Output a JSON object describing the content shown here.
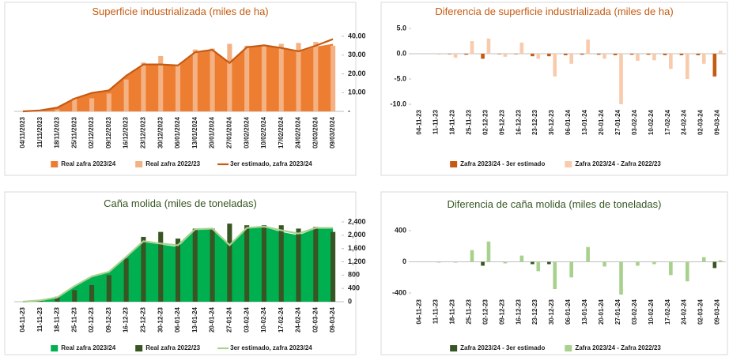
{
  "chart_data": [
    {
      "type": "combo",
      "title": "Superficie industrializada (miles de ha)",
      "title_color": "#C55A11",
      "y_axis_side": "right",
      "legend": "bottom",
      "categories": [
        "04/11/2023",
        "11/11/2023",
        "18/11/2023",
        "25/11/2023",
        "02/12/2023",
        "09/12/2023",
        "16/12/2023",
        "23/12/2023",
        "30/12/2023",
        "06/01/2024",
        "13/01/2024",
        "20/01/2024",
        "27/01/2024",
        "03/02/2024",
        "10/02/2024",
        "17/02/2024",
        "24/02/2024",
        "02/03/2024",
        "09/03/2024"
      ],
      "ylim": [
        0,
        40
      ],
      "yticks": [
        {
          "value": 0,
          "label": "-"
        },
        {
          "value": 10,
          "label": "10.00"
        },
        {
          "value": 20,
          "label": "20.00"
        },
        {
          "value": 30,
          "label": "30.00"
        },
        {
          "value": 40,
          "label": "40.00"
        }
      ],
      "series": [
        {
          "name": "Real zafra 2023/24",
          "kind": "area",
          "color": "#ED7D31",
          "values": [
            0,
            0.5,
            2,
            6.5,
            9.5,
            11,
            19,
            25,
            25,
            24,
            31,
            32.5,
            25.5,
            34,
            35,
            33.5,
            31.5,
            34.5,
            36
          ]
        },
        {
          "name": "Real zafra 2022/23",
          "kind": "bar",
          "color": "#F4B183",
          "values": [
            0,
            0.3,
            1,
            7,
            7,
            9.5,
            17,
            26,
            29.5,
            25,
            33,
            33.5,
            36,
            35,
            35.5,
            36,
            36.5,
            37,
            35
          ]
        },
        {
          "name": "3er estimado, zafra 2023/24",
          "kind": "line",
          "color": "#C55A11",
          "values": [
            0,
            0.5,
            2,
            6.8,
            9.8,
            11.2,
            19,
            25,
            25,
            24.5,
            31.5,
            32.8,
            25.8,
            34.2,
            35.2,
            33.8,
            32,
            35,
            38.5
          ]
        }
      ]
    },
    {
      "type": "bar",
      "title": "Diferencia de superficie industrializada (miles de ha)",
      "title_color": "#C55A11",
      "y_axis_side": "left",
      "legend": "bottom",
      "categories": [
        "04-11-23",
        "11-11-23",
        "18-11-23",
        "25-11-23",
        "02-12-23",
        "09-12-23",
        "16-12-23",
        "23-12-23",
        "30-12-23",
        "06-01-24",
        "13-01-24",
        "20-01-24",
        "27-01-24",
        "03-02-24",
        "10-02-24",
        "17-02-24",
        "24-02-24",
        "02-03-24",
        "09-03-24"
      ],
      "ylim": [
        -10,
        5
      ],
      "yticks": [
        {
          "value": 5,
          "label": "5.0"
        },
        {
          "value": 0,
          "label": "0.0"
        },
        {
          "value": -5,
          "label": "-5.0"
        },
        {
          "value": -10,
          "label": "-10.0"
        }
      ],
      "series": [
        {
          "name": "Zafra 2023/24 - 3er estimado",
          "kind": "bar",
          "color": "#C55A11",
          "values": [
            0,
            0,
            -0.1,
            -0.2,
            -1.0,
            -0.1,
            -0.1,
            -0.5,
            -0.5,
            -0.3,
            -0.2,
            -0.2,
            -0.3,
            -0.2,
            -0.2,
            -0.3,
            -0.3,
            -0.3,
            -4.5
          ]
        },
        {
          "name": "Zafra 2023/24 - Zafra 2022/23",
          "kind": "bar",
          "color": "#F8CBAD",
          "values": [
            0,
            -0.2,
            -0.8,
            2.5,
            3.0,
            -0.6,
            2.2,
            -1.0,
            -4.5,
            -2.0,
            2.8,
            -1.0,
            -10.0,
            -1.4,
            -1.3,
            -3.0,
            -5.0,
            -2.0,
            0.6
          ]
        }
      ]
    },
    {
      "type": "combo",
      "title": "Caña molida (miles de toneladas)",
      "title_color": "#375623",
      "y_axis_side": "right",
      "legend": "bottom",
      "categories": [
        "04-11-23",
        "11-11-23",
        "18-11-23",
        "25-11-23",
        "02-12-23",
        "09-12-23",
        "16-12-23",
        "23-12-23",
        "30-12-23",
        "06-01-24",
        "13-01-24",
        "20-01-24",
        "27-01-24",
        "03-02-24",
        "10-02-24",
        "17-02-24",
        "24-02-24",
        "02-03-24",
        "09-03-24"
      ],
      "ylim": [
        0,
        2400
      ],
      "yticks": [
        0,
        400,
        800,
        {
          "value": 1200,
          "label": "1,200"
        },
        {
          "value": 1600,
          "label": "1,600"
        },
        {
          "value": 2000,
          "label": "2,000"
        },
        {
          "value": 2400,
          "label": "2,400"
        }
      ],
      "series": [
        {
          "name": "Real zafra 2023/24",
          "kind": "area",
          "color": "#00B050",
          "values": [
            0,
            30,
            120,
            450,
            750,
            880,
            1350,
            1800,
            1720,
            1650,
            2150,
            2200,
            1680,
            2200,
            2250,
            2100,
            2000,
            2200,
            2200
          ]
        },
        {
          "name": "Real zafra 2022/23",
          "kind": "bar",
          "color": "#375623",
          "values": [
            0,
            50,
            150,
            350,
            500,
            800,
            1300,
            1950,
            2100,
            1900,
            2200,
            2200,
            2350,
            2300,
            2300,
            2300,
            2200,
            2250,
            2100
          ]
        },
        {
          "name": "3er estimado, zafra 2023/24",
          "kind": "line",
          "color": "#A9D18E",
          "values": [
            0,
            40,
            130,
            470,
            760,
            900,
            1350,
            1820,
            1750,
            1700,
            2180,
            2200,
            1700,
            2220,
            2260,
            2150,
            2050,
            2220,
            2220
          ]
        }
      ]
    },
    {
      "type": "bar",
      "title": "Diferencia de caña molida (miles de toneladas)",
      "title_color": "#375623",
      "y_axis_side": "left",
      "legend": "bottom",
      "categories": [
        "04-11-23",
        "11-11-23",
        "18-11-23",
        "25-11-23",
        "02-12-23",
        "09-12-23",
        "16-12-23",
        "23-12-23",
        "30-12-23",
        "06-01-24",
        "13-01-24",
        "20-01-24",
        "27-01-24",
        "03-02-24",
        "10-02-24",
        "17-02-24",
        "24-02-24",
        "02-03-24",
        "09-03-24"
      ],
      "ylim": [
        -400,
        400
      ],
      "yticks": [
        400,
        0,
        -400
      ],
      "series": [
        {
          "name": "Zafra 2023/24 - 3er estimado",
          "kind": "bar",
          "color": "#375623",
          "values": [
            0,
            0,
            0,
            0,
            -50,
            0,
            0,
            -30,
            -30,
            0,
            0,
            0,
            0,
            0,
            0,
            0,
            0,
            0,
            -80
          ]
        },
        {
          "name": "Zafra 2023/24 - Zafra 2022/23",
          "kind": "bar",
          "color": "#A9D18E",
          "values": [
            0,
            -10,
            -10,
            150,
            260,
            -20,
            80,
            -120,
            -350,
            -200,
            190,
            -60,
            -420,
            -50,
            -30,
            -170,
            -250,
            60,
            20
          ]
        }
      ]
    }
  ]
}
